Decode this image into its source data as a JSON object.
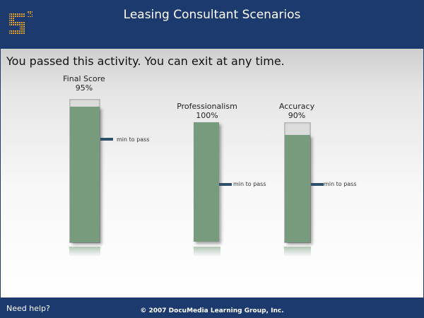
{
  "header": {
    "title": "Leasing Consultant Scenarios",
    "logo": {
      "icon": "s3-logo-icon",
      "text": "S",
      "superscript": "3",
      "color": "#e0a020"
    }
  },
  "main": {
    "message": "You passed this activity. You can exit at any time.",
    "min_to_pass_label": "min to pass",
    "scores": [
      {
        "name": "Final Score",
        "value_label": "95%",
        "value": 95
      },
      {
        "name": "Professionalism",
        "value_label": "100%",
        "value": 100
      },
      {
        "name": "Accuracy",
        "value_label": "90%",
        "value": 90
      }
    ]
  },
  "footer": {
    "help": "Need help?",
    "copyright": "© 2007 DocuMedia Learning Group, Inc."
  },
  "colors": {
    "header": "#1c3a6e",
    "bar_fill": "#789b7e",
    "marker": "#2e5169"
  }
}
